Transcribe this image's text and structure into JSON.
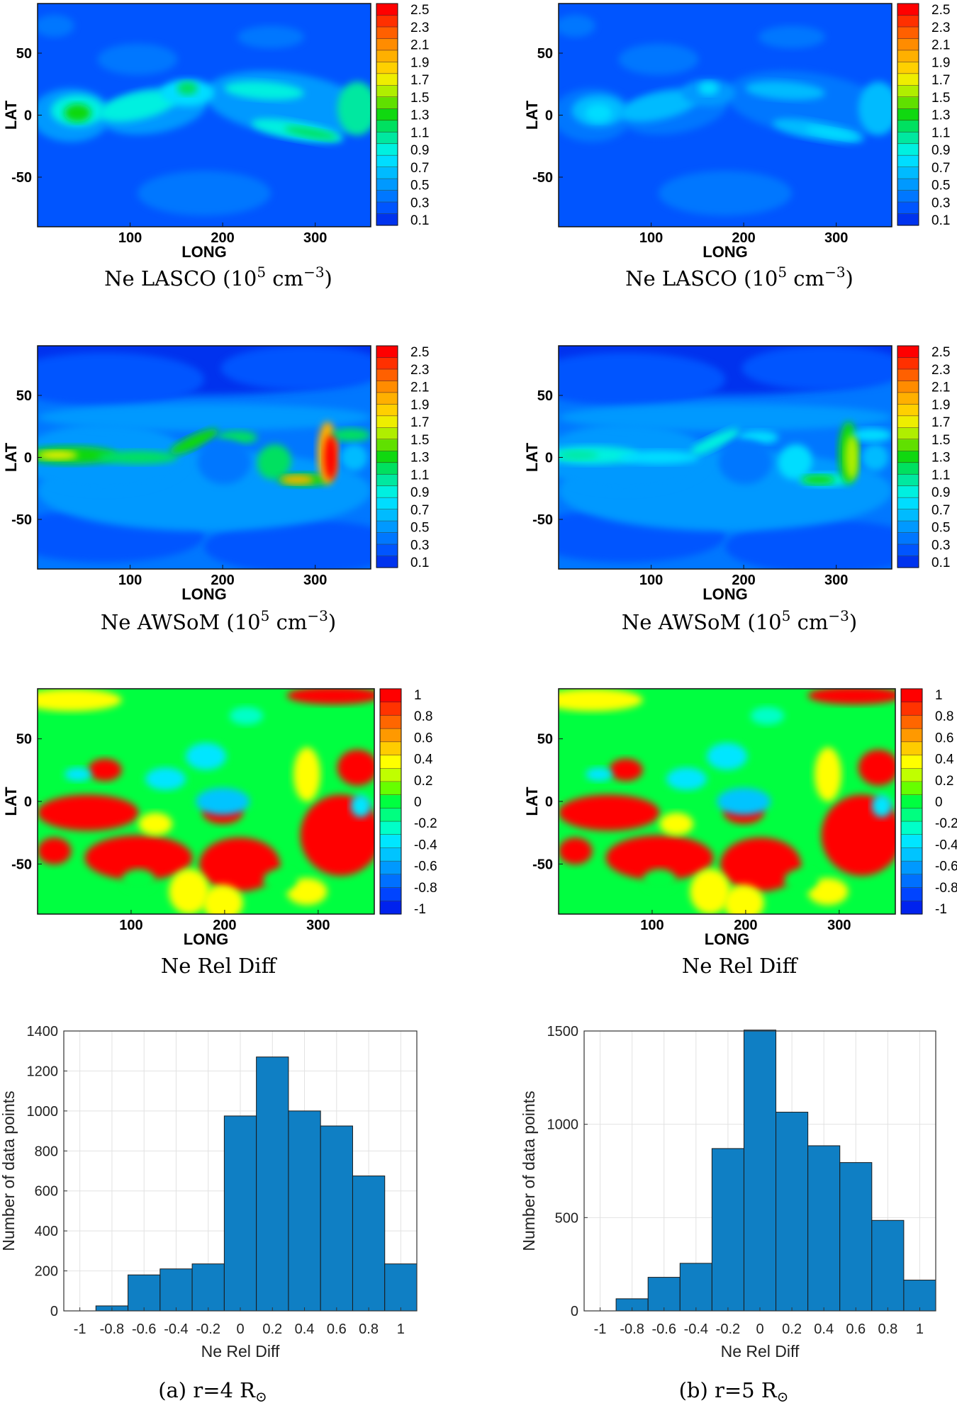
{
  "colors": {
    "bar_fill": "#0f7fc4",
    "bar_edge": "#1a1a1a",
    "density_scale": [
      "#0033ee",
      "#0055ff",
      "#0077ff",
      "#0099ff",
      "#00bbff",
      "#00ddff",
      "#00f0e0",
      "#00e8a0",
      "#00e060",
      "#10d810",
      "#60e000",
      "#b0ee00",
      "#eeee00",
      "#ffd000",
      "#ffb000",
      "#ff8c00",
      "#ff6000",
      "#ff3000",
      "#ff0000"
    ],
    "diff_scale": [
      "#0022ee",
      "#0044ff",
      "#0070ff",
      "#0099ff",
      "#00c4ff",
      "#00e6ff",
      "#00ffc8",
      "#00ff80",
      "#00ff40",
      "#66ff00",
      "#c0ff00",
      "#ffff00",
      "#ffcc00",
      "#ff9900",
      "#ff6600",
      "#ff3300",
      "#ff0000"
    ]
  },
  "map_axes": {
    "xlabel": "LONG",
    "ylabel": "LAT",
    "xticks": [
      "100",
      "200",
      "300"
    ],
    "yticks": [
      "50",
      "0",
      "-50"
    ],
    "density_cbar_ticks": [
      "2.5",
      "2.3",
      "2.1",
      "1.9",
      "1.7",
      "1.5",
      "1.3",
      "1.1",
      "0.9",
      "0.7",
      "0.5",
      "0.3",
      "0.1"
    ],
    "diff_cbar_ticks": [
      "1",
      "0.8",
      "0.6",
      "0.4",
      "0.2",
      "0",
      "-0.2",
      "-0.4",
      "-0.6",
      "-0.8",
      "-1"
    ]
  },
  "captions": {
    "lasco": "Ne LASCO (10",
    "awsom": "Ne AWSoM (10",
    "unit_sup_base": "5",
    "unit_mid": " cm",
    "unit_exp": "−3",
    "unit_close": ")",
    "reldiff": "Ne Rel Diff"
  },
  "columns": [
    {
      "subcaption_prefix": "(a) r=4 R",
      "subcaption_suffix": "⊙",
      "lasco_intensity": 1.0,
      "awsom_intensity": 1.0
    },
    {
      "subcaption_prefix": "(b) r=5 R",
      "subcaption_suffix": "⊙",
      "lasco_intensity": 0.6,
      "awsom_intensity": 0.62
    }
  ],
  "chart_data": [
    {
      "type": "bar",
      "xlabel": "Ne Rel Diff",
      "ylabel": "Number of data points",
      "xticks": [
        "-1",
        "-0.8",
        "-0.6",
        "-0.4",
        "-0.2",
        "0",
        "0.2",
        "0.4",
        "0.6",
        "0.8",
        "1"
      ],
      "yticks": [
        "0",
        "200",
        "400",
        "600",
        "800",
        "1000",
        "1200",
        "1400"
      ],
      "xlim": [
        -1.1,
        1.1
      ],
      "ylim": [
        0,
        1400
      ],
      "grid": true,
      "bin_edges": [
        -0.9,
        -0.7,
        -0.5,
        -0.3,
        -0.1,
        0.1,
        0.3,
        0.5,
        0.7,
        0.9,
        1.1
      ],
      "values": [
        25,
        180,
        210,
        235,
        975,
        1270,
        1000,
        925,
        675,
        235
      ]
    },
    {
      "type": "bar",
      "xlabel": "Ne Rel Diff",
      "ylabel": "Number of data points",
      "xticks": [
        "-1",
        "-0.8",
        "-0.6",
        "-0.4",
        "-0.2",
        "0",
        "0.2",
        "0.4",
        "0.6",
        "0.8",
        "1"
      ],
      "yticks": [
        "0",
        "500",
        "1000",
        "1500"
      ],
      "xlim": [
        -1.1,
        1.1
      ],
      "ylim": [
        0,
        1500
      ],
      "grid": true,
      "bin_edges": [
        -0.9,
        -0.7,
        -0.5,
        -0.3,
        -0.1,
        0.1,
        0.3,
        0.5,
        0.7,
        0.9,
        1.1
      ],
      "values": [
        65,
        180,
        255,
        870,
        1505,
        1065,
        885,
        795,
        485,
        165
      ]
    }
  ]
}
